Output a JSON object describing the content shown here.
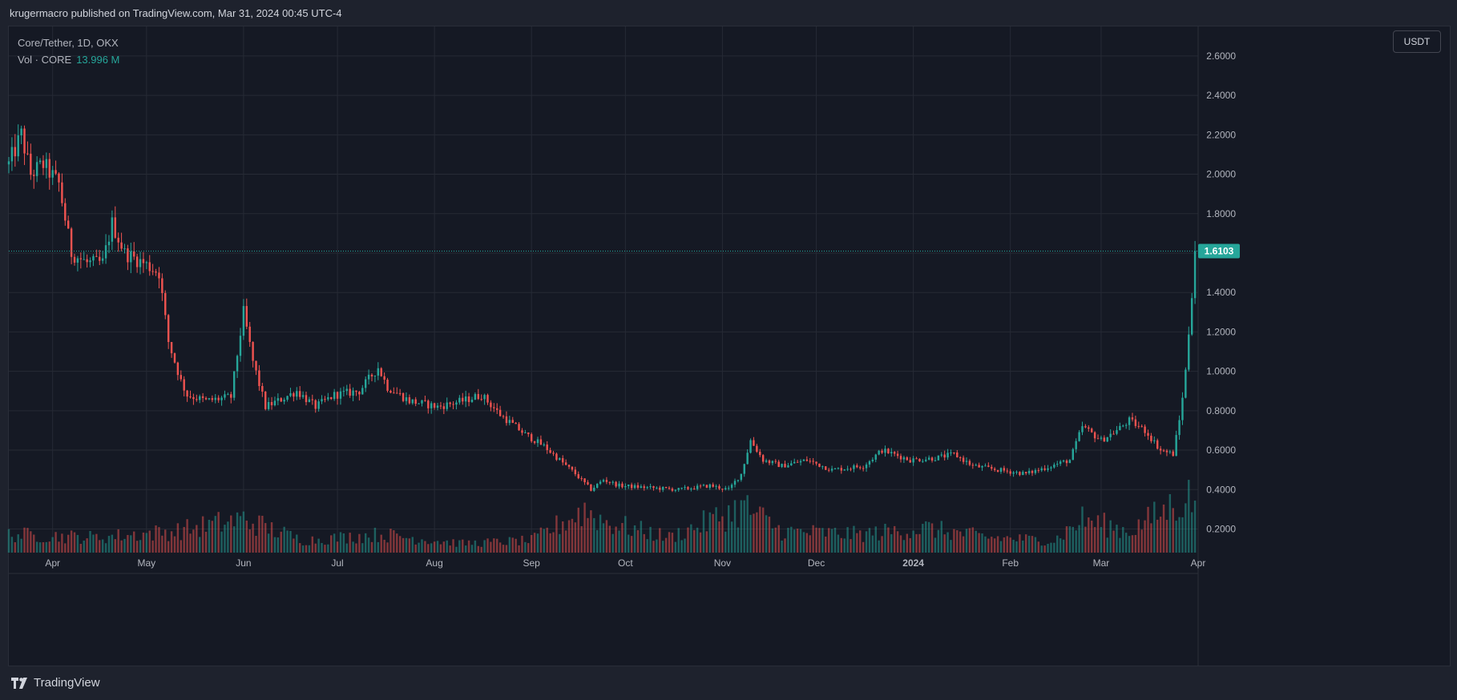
{
  "header": {
    "publish_line": "krugermacro published on TradingView.com, Mar 31, 2024 00:45 UTC-4"
  },
  "legend": {
    "symbol_line": "Core/Tether, 1D, OKX",
    "volume_label": "Vol · CORE",
    "volume_value": "13.996 M"
  },
  "price_scale": {
    "currency_button": "USDT",
    "current_price_label": "1.6103"
  },
  "footer": {
    "brand_name": "TradingView"
  },
  "colors": {
    "up": "#26a69a",
    "down": "#ef5350",
    "background": "#151924",
    "grid": "#262a35",
    "axis_text": "#b2b5be"
  },
  "chart_data": {
    "type": "candlestick",
    "title": "Core/Tether, 1D, OKX",
    "ylabel": "USDT",
    "ylim": [
      0.08,
      2.75
    ],
    "grid": true,
    "y_ticks": [
      "0.2000",
      "0.4000",
      "0.6000",
      "0.8000",
      "1.0000",
      "1.2000",
      "1.4000",
      "1.6000",
      "1.8000",
      "2.0000",
      "2.2000",
      "2.4000",
      "2.6000"
    ],
    "x_ticks": [
      {
        "label": "Apr",
        "date": "2023-04-01",
        "bold": false
      },
      {
        "label": "May",
        "date": "2023-05-01",
        "bold": false
      },
      {
        "label": "Jun",
        "date": "2023-06-01",
        "bold": false
      },
      {
        "label": "Jul",
        "date": "2023-07-01",
        "bold": false
      },
      {
        "label": "Aug",
        "date": "2023-08-01",
        "bold": false
      },
      {
        "label": "Sep",
        "date": "2023-09-01",
        "bold": false
      },
      {
        "label": "Oct",
        "date": "2023-10-01",
        "bold": false
      },
      {
        "label": "Nov",
        "date": "2023-11-01",
        "bold": false
      },
      {
        "label": "Dec",
        "date": "2023-12-01",
        "bold": false
      },
      {
        "label": "2024",
        "date": "2024-01-01",
        "bold": true
      },
      {
        "label": "Feb",
        "date": "2024-02-01",
        "bold": false
      },
      {
        "label": "Mar",
        "date": "2024-03-01",
        "bold": false
      },
      {
        "label": "Apr",
        "date": "2024-04-01",
        "bold": false
      }
    ],
    "x_range": [
      "2023-03-18",
      "2024-04-01"
    ],
    "current_price": 1.6103,
    "price_path": [
      [
        "2023-03-18",
        2.05
      ],
      [
        "2023-03-22",
        2.2
      ],
      [
        "2023-03-25",
        2.0
      ],
      [
        "2023-03-29",
        2.05
      ],
      [
        "2023-04-03",
        1.95
      ],
      [
        "2023-04-07",
        1.6
      ],
      [
        "2023-04-12",
        1.55
      ],
      [
        "2023-04-17",
        1.55
      ],
      [
        "2023-04-20",
        1.75
      ],
      [
        "2023-04-24",
        1.6
      ],
      [
        "2023-04-30",
        1.55
      ],
      [
        "2023-05-05",
        1.5
      ],
      [
        "2023-05-08",
        1.15
      ],
      [
        "2023-05-12",
        0.95
      ],
      [
        "2023-05-14",
        0.88
      ],
      [
        "2023-05-20",
        0.85
      ],
      [
        "2023-05-28",
        0.87
      ],
      [
        "2023-06-01",
        1.3
      ],
      [
        "2023-06-04",
        1.05
      ],
      [
        "2023-06-08",
        0.82
      ],
      [
        "2023-06-12",
        0.85
      ],
      [
        "2023-06-18",
        0.9
      ],
      [
        "2023-06-24",
        0.82
      ],
      [
        "2023-06-30",
        0.88
      ],
      [
        "2023-07-08",
        0.9
      ],
      [
        "2023-07-14",
        1.02
      ],
      [
        "2023-07-17",
        0.92
      ],
      [
        "2023-07-24",
        0.85
      ],
      [
        "2023-08-02",
        0.82
      ],
      [
        "2023-08-10",
        0.85
      ],
      [
        "2023-08-16",
        0.88
      ],
      [
        "2023-08-22",
        0.78
      ],
      [
        "2023-08-30",
        0.68
      ],
      [
        "2023-09-05",
        0.62
      ],
      [
        "2023-09-10",
        0.55
      ],
      [
        "2023-09-15",
        0.48
      ],
      [
        "2023-09-20",
        0.4
      ],
      [
        "2023-09-24",
        0.45
      ],
      [
        "2023-09-29",
        0.42
      ],
      [
        "2023-10-08",
        0.41
      ],
      [
        "2023-10-18",
        0.4
      ],
      [
        "2023-10-28",
        0.42
      ],
      [
        "2023-11-03",
        0.4
      ],
      [
        "2023-11-07",
        0.48
      ],
      [
        "2023-11-10",
        0.65
      ],
      [
        "2023-11-14",
        0.55
      ],
      [
        "2023-11-20",
        0.52
      ],
      [
        "2023-11-28",
        0.55
      ],
      [
        "2023-12-06",
        0.5
      ],
      [
        "2023-12-16",
        0.52
      ],
      [
        "2023-12-22",
        0.6
      ],
      [
        "2023-12-31",
        0.55
      ],
      [
        "2024-01-08",
        0.56
      ],
      [
        "2024-01-14",
        0.58
      ],
      [
        "2024-01-20",
        0.52
      ],
      [
        "2024-01-28",
        0.5
      ],
      [
        "2024-02-06",
        0.48
      ],
      [
        "2024-02-14",
        0.52
      ],
      [
        "2024-02-20",
        0.55
      ],
      [
        "2024-02-24",
        0.72
      ],
      [
        "2024-03-01",
        0.65
      ],
      [
        "2024-03-06",
        0.7
      ],
      [
        "2024-03-10",
        0.75
      ],
      [
        "2024-03-15",
        0.7
      ],
      [
        "2024-03-20",
        0.6
      ],
      [
        "2024-03-24",
        0.58
      ],
      [
        "2024-03-26",
        0.75
      ],
      [
        "2024-03-28",
        1.0
      ],
      [
        "2024-03-30",
        1.4
      ],
      [
        "2024-03-31",
        1.6103
      ]
    ],
    "volume_path": [
      [
        "2023-03-18",
        0.3
      ],
      [
        "2023-04-15",
        0.25
      ],
      [
        "2023-05-10",
        0.35
      ],
      [
        "2023-06-01",
        0.55
      ],
      [
        "2023-06-20",
        0.2
      ],
      [
        "2023-07-15",
        0.3
      ],
      [
        "2023-08-10",
        0.15
      ],
      [
        "2023-09-01",
        0.2
      ],
      [
        "2023-09-18",
        0.7
      ],
      [
        "2023-09-25",
        0.5
      ],
      [
        "2023-10-15",
        0.25
      ],
      [
        "2023-11-08",
        0.75
      ],
      [
        "2023-11-20",
        0.35
      ],
      [
        "2023-12-15",
        0.3
      ],
      [
        "2024-01-05",
        0.4
      ],
      [
        "2024-01-25",
        0.25
      ],
      [
        "2024-02-15",
        0.2
      ],
      [
        "2024-02-24",
        0.55
      ],
      [
        "2024-03-10",
        0.35
      ],
      [
        "2024-03-28",
        0.9
      ]
    ]
  }
}
